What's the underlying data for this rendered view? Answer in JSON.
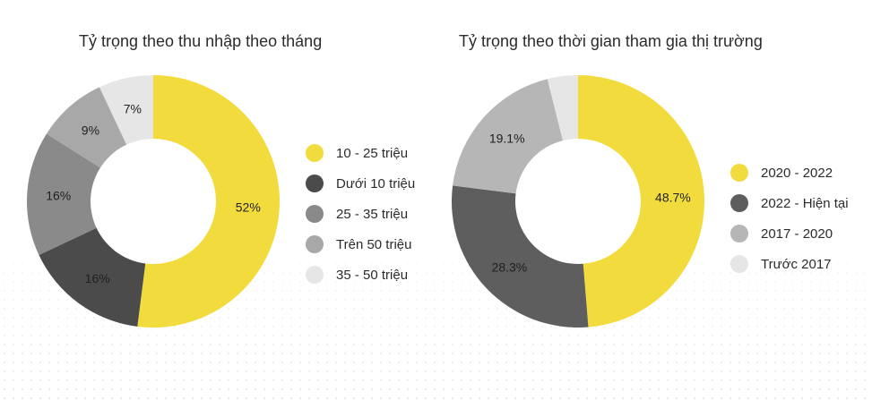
{
  "chart_data": [
    {
      "type": "pie",
      "title": "Tỷ trọng theo thu nhập theo tháng",
      "slices": [
        {
          "label": "10 - 25 triệu",
          "value": 52,
          "display": "52%",
          "color": "#F2DC3D"
        },
        {
          "label": "Dưới 10 triệu",
          "value": 16,
          "display": "16%",
          "color": "#4B4B4B"
        },
        {
          "label": "25 - 35 triệu",
          "value": 16,
          "display": "16%",
          "color": "#8A8A8A"
        },
        {
          "label": "Trên 50 triệu",
          "value": 9,
          "display": "9%",
          "color": "#A8A8A8"
        },
        {
          "label": "35 - 50 triệu",
          "value": 7,
          "display": "7%",
          "color": "#E6E6E6"
        }
      ],
      "legend_position": "right"
    },
    {
      "type": "pie",
      "title": "Tỷ trọng theo thời gian tham gia thị trường",
      "slices": [
        {
          "label": "2020 - 2022",
          "value": 48.7,
          "display": "48.7%",
          "color": "#F2DC3D"
        },
        {
          "label": "2022 - Hiện tại",
          "value": 28.3,
          "display": "28.3%",
          "color": "#5E5E5E"
        },
        {
          "label": "2017 - 2020",
          "value": 19.1,
          "display": "19.1%",
          "color": "#B6B6B6"
        },
        {
          "label": "Trước 2017",
          "value": 3.9,
          "display": "",
          "color": "#E6E6E6"
        }
      ],
      "legend_position": "right"
    }
  ]
}
